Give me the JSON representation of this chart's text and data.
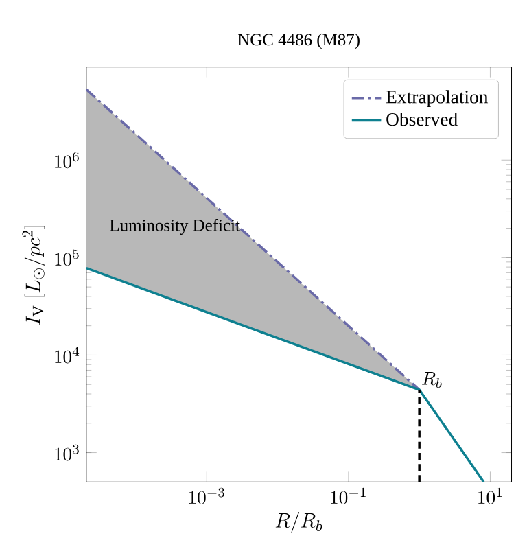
{
  "chart_data": {
    "type": "line",
    "title": "NGC 4486 (M87)",
    "xlabel": "R/R_{b}",
    "ylabel": "I_{\\mathrm{V}}\\ [L_{\\odot}/pc^{2}]",
    "log": "xy",
    "grid": false,
    "legend": "top right",
    "xlim": [
      2e-05,
      20
    ],
    "ylim": [
      500,
      9000000.0
    ],
    "xticks": [
      {
        "value": 0.001,
        "label": "10^{-3}"
      },
      {
        "value": 0.1,
        "label": "10^{-1}"
      },
      {
        "value": 10,
        "label": "10^{1}"
      }
    ],
    "yticks": [
      {
        "value": 1000,
        "label": "10^{3}"
      },
      {
        "value": 10000,
        "label": "10^{4}"
      },
      {
        "value": 100000,
        "label": "10^{5}"
      },
      {
        "value": 1000000,
        "label": "10^{6}"
      }
    ],
    "series": [
      {
        "name": "Extrapolation",
        "color": "#6a6aa8",
        "line_style": "dashdot",
        "x": [
          2e-05,
          1
        ],
        "values": [
          5300000.0,
          4400
        ],
        "lower": [
          78000.0,
          4400
        ],
        "upper": [
          5300000.0,
          4400
        ]
      },
      {
        "name": "Observed",
        "color": "#0e8090",
        "line_style": "solid",
        "x": [
          2e-05,
          1,
          8.1
        ],
        "values": [
          78000.0,
          4400,
          500
        ]
      },
      {
        "color": "#000000",
        "line_style": "dashed",
        "x": [
          1,
          1
        ],
        "values": [
          500,
          4400
        ]
      }
    ],
    "annotations": [
      "Luminosity Deficit",
      {
        "text": "R_{b}",
        "x": 1,
        "y": 4400
      }
    ]
  }
}
